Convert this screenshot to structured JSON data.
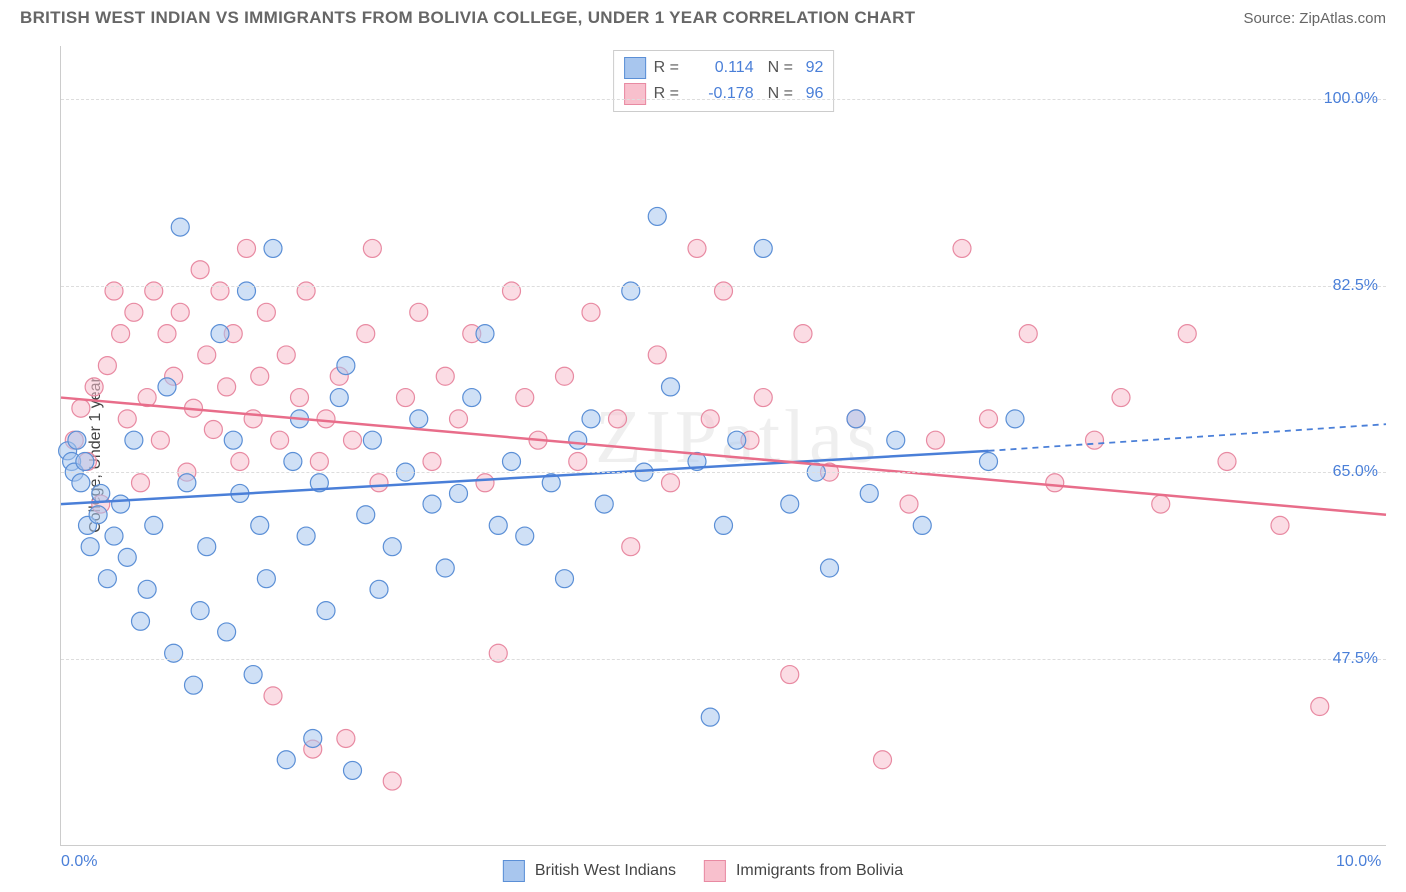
{
  "header": {
    "title": "BRITISH WEST INDIAN VS IMMIGRANTS FROM BOLIVIA COLLEGE, UNDER 1 YEAR CORRELATION CHART",
    "source": "Source: ZipAtlas.com"
  },
  "watermark": "ZIPatlas",
  "chart": {
    "type": "scatter",
    "ylabel": "College, Under 1 year",
    "xlim": [
      0,
      10
    ],
    "ylim": [
      30,
      105
    ],
    "y_ticks": [
      47.5,
      65.0,
      82.5,
      100.0
    ],
    "y_tick_labels": [
      "47.5%",
      "65.0%",
      "82.5%",
      "100.0%"
    ],
    "x_ticks": [
      0,
      10
    ],
    "x_tick_labels": [
      "0.0%",
      "10.0%"
    ],
    "background_color": "#ffffff",
    "grid_color": "#dddddd",
    "marker_radius": 9,
    "marker_opacity": 0.55,
    "series": [
      {
        "name": "British West Indians",
        "color_fill": "#a8c6ee",
        "color_stroke": "#5b8fd6",
        "r_label": "R =",
        "r_value": "0.114",
        "n_label": "N =",
        "n_value": "92",
        "trend": {
          "x1": 0,
          "y1": 62,
          "x2": 7.0,
          "y2": 67,
          "x2_dash": 10,
          "y2_dash": 69.5,
          "color": "#4a7fd8",
          "width": 2.5
        },
        "points": [
          [
            0.05,
            67
          ],
          [
            0.08,
            66
          ],
          [
            0.1,
            65
          ],
          [
            0.12,
            68
          ],
          [
            0.15,
            64
          ],
          [
            0.18,
            66
          ],
          [
            0.2,
            60
          ],
          [
            0.22,
            58
          ],
          [
            0.28,
            61
          ],
          [
            0.3,
            63
          ],
          [
            0.35,
            55
          ],
          [
            0.4,
            59
          ],
          [
            0.45,
            62
          ],
          [
            0.5,
            57
          ],
          [
            0.55,
            68
          ],
          [
            0.6,
            51
          ],
          [
            0.65,
            54
          ],
          [
            0.7,
            60
          ],
          [
            0.8,
            73
          ],
          [
            0.85,
            48
          ],
          [
            0.9,
            88
          ],
          [
            0.95,
            64
          ],
          [
            1.0,
            45
          ],
          [
            1.05,
            52
          ],
          [
            1.1,
            58
          ],
          [
            1.2,
            78
          ],
          [
            1.25,
            50
          ],
          [
            1.3,
            68
          ],
          [
            1.35,
            63
          ],
          [
            1.4,
            82
          ],
          [
            1.45,
            46
          ],
          [
            1.5,
            60
          ],
          [
            1.55,
            55
          ],
          [
            1.6,
            86
          ],
          [
            1.7,
            38
          ],
          [
            1.75,
            66
          ],
          [
            1.8,
            70
          ],
          [
            1.85,
            59
          ],
          [
            1.9,
            40
          ],
          [
            1.95,
            64
          ],
          [
            2.0,
            52
          ],
          [
            2.1,
            72
          ],
          [
            2.15,
            75
          ],
          [
            2.2,
            37
          ],
          [
            2.3,
            61
          ],
          [
            2.35,
            68
          ],
          [
            2.4,
            54
          ],
          [
            2.5,
            58
          ],
          [
            2.6,
            65
          ],
          [
            2.7,
            70
          ],
          [
            2.8,
            62
          ],
          [
            2.9,
            56
          ],
          [
            3.0,
            63
          ],
          [
            3.1,
            72
          ],
          [
            3.2,
            78
          ],
          [
            3.3,
            60
          ],
          [
            3.4,
            66
          ],
          [
            3.5,
            59
          ],
          [
            3.7,
            64
          ],
          [
            3.8,
            55
          ],
          [
            3.9,
            68
          ],
          [
            4.0,
            70
          ],
          [
            4.1,
            62
          ],
          [
            4.3,
            82
          ],
          [
            4.4,
            65
          ],
          [
            4.5,
            89
          ],
          [
            4.6,
            73
          ],
          [
            4.8,
            66
          ],
          [
            4.9,
            42
          ],
          [
            5.0,
            60
          ],
          [
            5.1,
            68
          ],
          [
            5.3,
            86
          ],
          [
            5.5,
            62
          ],
          [
            5.7,
            65
          ],
          [
            5.8,
            56
          ],
          [
            6.0,
            70
          ],
          [
            6.1,
            63
          ],
          [
            6.3,
            68
          ],
          [
            6.5,
            60
          ],
          [
            7.0,
            66
          ],
          [
            7.2,
            70
          ]
        ]
      },
      {
        "name": "Immigrants from Bolivia",
        "color_fill": "#f8c0cd",
        "color_stroke": "#e88aa2",
        "r_label": "R =",
        "r_value": "-0.178",
        "n_label": "N =",
        "n_value": "96",
        "trend": {
          "x1": 0,
          "y1": 72,
          "x2": 10,
          "y2": 61,
          "color": "#e86d8a",
          "width": 2.5
        },
        "points": [
          [
            0.1,
            68
          ],
          [
            0.15,
            71
          ],
          [
            0.2,
            66
          ],
          [
            0.25,
            73
          ],
          [
            0.3,
            62
          ],
          [
            0.35,
            75
          ],
          [
            0.4,
            82
          ],
          [
            0.45,
            78
          ],
          [
            0.5,
            70
          ],
          [
            0.55,
            80
          ],
          [
            0.6,
            64
          ],
          [
            0.65,
            72
          ],
          [
            0.7,
            82
          ],
          [
            0.75,
            68
          ],
          [
            0.8,
            78
          ],
          [
            0.85,
            74
          ],
          [
            0.9,
            80
          ],
          [
            0.95,
            65
          ],
          [
            1.0,
            71
          ],
          [
            1.05,
            84
          ],
          [
            1.1,
            76
          ],
          [
            1.15,
            69
          ],
          [
            1.2,
            82
          ],
          [
            1.25,
            73
          ],
          [
            1.3,
            78
          ],
          [
            1.35,
            66
          ],
          [
            1.4,
            86
          ],
          [
            1.45,
            70
          ],
          [
            1.5,
            74
          ],
          [
            1.55,
            80
          ],
          [
            1.6,
            44
          ],
          [
            1.65,
            68
          ],
          [
            1.7,
            76
          ],
          [
            1.8,
            72
          ],
          [
            1.85,
            82
          ],
          [
            1.9,
            39
          ],
          [
            1.95,
            66
          ],
          [
            2.0,
            70
          ],
          [
            2.1,
            74
          ],
          [
            2.15,
            40
          ],
          [
            2.2,
            68
          ],
          [
            2.3,
            78
          ],
          [
            2.35,
            86
          ],
          [
            2.4,
            64
          ],
          [
            2.5,
            36
          ],
          [
            2.6,
            72
          ],
          [
            2.7,
            80
          ],
          [
            2.8,
            66
          ],
          [
            2.9,
            74
          ],
          [
            3.0,
            70
          ],
          [
            3.1,
            78
          ],
          [
            3.2,
            64
          ],
          [
            3.3,
            48
          ],
          [
            3.4,
            82
          ],
          [
            3.5,
            72
          ],
          [
            3.6,
            68
          ],
          [
            3.8,
            74
          ],
          [
            3.9,
            66
          ],
          [
            4.0,
            80
          ],
          [
            4.2,
            70
          ],
          [
            4.3,
            58
          ],
          [
            4.5,
            76
          ],
          [
            4.6,
            64
          ],
          [
            4.8,
            86
          ],
          [
            4.9,
            70
          ],
          [
            5.0,
            82
          ],
          [
            5.2,
            68
          ],
          [
            5.3,
            72
          ],
          [
            5.5,
            46
          ],
          [
            5.6,
            78
          ],
          [
            5.8,
            65
          ],
          [
            6.0,
            70
          ],
          [
            6.2,
            38
          ],
          [
            6.4,
            62
          ],
          [
            6.6,
            68
          ],
          [
            6.8,
            86
          ],
          [
            7.0,
            70
          ],
          [
            7.3,
            78
          ],
          [
            7.5,
            64
          ],
          [
            7.8,
            68
          ],
          [
            8.0,
            72
          ],
          [
            8.3,
            62
          ],
          [
            8.5,
            78
          ],
          [
            8.8,
            66
          ],
          [
            9.2,
            60
          ],
          [
            9.5,
            43
          ]
        ]
      }
    ]
  },
  "legend": {
    "item1": "British West Indians",
    "item2": "Immigrants from Bolivia"
  }
}
